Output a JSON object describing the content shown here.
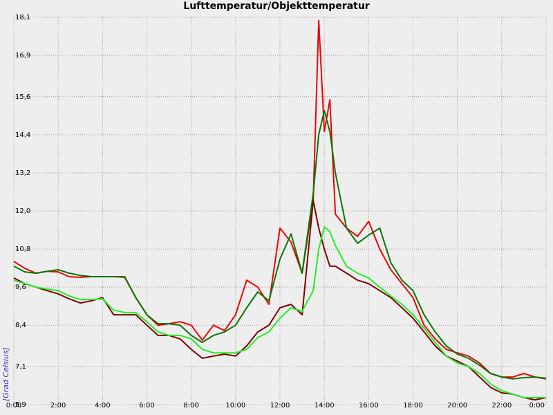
{
  "chart_data": {
    "type": "line",
    "title": "Lufttemperatur/Objekttemperatur",
    "y_label": "[Grad Celsius]",
    "x": [
      0,
      0.5,
      1,
      1.5,
      2,
      2.5,
      3,
      3.5,
      4,
      4.5,
      5,
      5.5,
      6,
      6.5,
      7,
      7.5,
      8,
      8.5,
      9,
      9.5,
      10,
      10.5,
      11,
      11.5,
      12,
      12.5,
      13,
      13.5,
      13.75,
      14,
      14.25,
      14.5,
      15,
      15.5,
      16,
      16.5,
      17,
      17.5,
      18,
      18.5,
      19,
      19.5,
      20,
      20.5,
      21,
      21.5,
      22,
      22.5,
      23,
      23.5,
      24
    ],
    "series": [
      {
        "color": "#ee0000",
        "values": [
          10.41,
          10.19,
          10.04,
          10.1,
          10.08,
          9.93,
          9.91,
          9.93,
          9.93,
          9.93,
          9.91,
          9.27,
          8.73,
          8.4,
          8.45,
          8.51,
          8.4,
          7.93,
          8.4,
          8.23,
          8.73,
          9.82,
          9.6,
          9.06,
          11.46,
          11.02,
          10.04,
          12.33,
          18.0,
          14.5,
          15.5,
          11.9,
          11.46,
          11.2,
          11.67,
          10.8,
          10.15,
          9.71,
          9.27,
          8.4,
          7.97,
          7.64,
          7.53,
          7.43,
          7.21,
          6.88,
          6.77,
          6.77,
          6.88,
          6.77,
          6.71
        ]
      },
      {
        "color": "#7a0000",
        "values": [
          9.89,
          9.71,
          9.6,
          9.49,
          9.39,
          9.23,
          9.1,
          9.17,
          9.27,
          8.73,
          8.73,
          8.73,
          8.4,
          8.08,
          8.08,
          7.97,
          7.64,
          7.36,
          7.43,
          7.49,
          7.43,
          7.75,
          8.19,
          8.4,
          8.95,
          9.06,
          8.73,
          12.33,
          11.46,
          10.8,
          10.26,
          10.26,
          10.04,
          9.82,
          9.71,
          9.49,
          9.27,
          8.95,
          8.62,
          8.19,
          7.75,
          7.43,
          7.27,
          7.1,
          6.77,
          6.44,
          6.27,
          6.23,
          6.12,
          6.05,
          6.12
        ]
      },
      {
        "color": "#007800",
        "values": [
          10.26,
          10.08,
          10.04,
          10.1,
          10.15,
          10.04,
          9.97,
          9.93,
          9.93,
          9.93,
          9.93,
          9.27,
          8.73,
          8.45,
          8.45,
          8.4,
          8.08,
          7.86,
          8.08,
          8.19,
          8.4,
          8.95,
          9.45,
          9.17,
          10.48,
          11.28,
          10.04,
          12.54,
          14.4,
          15.16,
          14.5,
          13.2,
          11.46,
          10.98,
          11.24,
          11.46,
          10.37,
          9.82,
          9.49,
          8.73,
          8.19,
          7.75,
          7.49,
          7.36,
          7.14,
          6.88,
          6.77,
          6.71,
          6.75,
          6.77,
          6.73
        ]
      },
      {
        "color": "#22ee22",
        "values": [
          9.82,
          9.71,
          9.6,
          9.54,
          9.49,
          9.32,
          9.21,
          9.21,
          9.23,
          8.88,
          8.8,
          8.8,
          8.51,
          8.19,
          8.08,
          8.08,
          7.97,
          7.64,
          7.53,
          7.53,
          7.53,
          7.64,
          8.01,
          8.19,
          8.62,
          8.95,
          8.84,
          9.49,
          10.8,
          11.5,
          11.35,
          10.91,
          10.26,
          10.04,
          9.89,
          9.6,
          9.32,
          9.06,
          8.73,
          8.3,
          7.86,
          7.43,
          7.21,
          7.1,
          6.88,
          6.55,
          6.34,
          6.23,
          6.12,
          6.12,
          6.12
        ]
      }
    ],
    "xlim": [
      0,
      24
    ],
    "xticks": [
      {
        "value": 0,
        "label": "0:00"
      },
      {
        "value": 2,
        "label": "2:00"
      },
      {
        "value": 4,
        "label": "4:00"
      },
      {
        "value": 6,
        "label": "6:00"
      },
      {
        "value": 8,
        "label": "8:00"
      },
      {
        "value": 10,
        "label": "10:00"
      },
      {
        "value": 12,
        "label": "12:00"
      },
      {
        "value": 14,
        "label": "14:00"
      },
      {
        "value": 16,
        "label": "16:00"
      },
      {
        "value": 18,
        "label": "18:00"
      },
      {
        "value": 20,
        "label": "20:00"
      },
      {
        "value": 22,
        "label": "22:00"
      },
      {
        "value": 24,
        "label": "0:00"
      }
    ],
    "ylim": [
      5.9,
      18.1
    ],
    "yticks": [
      {
        "value": 5.9,
        "label": "5,9"
      },
      {
        "value": 7.1,
        "label": "7,1"
      },
      {
        "value": 8.4,
        "label": "8,4"
      },
      {
        "value": 9.6,
        "label": "9,6"
      },
      {
        "value": 10.8,
        "label": "10,8"
      },
      {
        "value": 12.0,
        "label": "12,0"
      },
      {
        "value": 13.2,
        "label": "13,2"
      },
      {
        "value": 14.4,
        "label": "14,4"
      },
      {
        "value": 15.6,
        "label": "15,6"
      },
      {
        "value": 16.9,
        "label": "16,9"
      },
      {
        "value": 18.1,
        "label": "18,1"
      }
    ],
    "grid": true
  }
}
